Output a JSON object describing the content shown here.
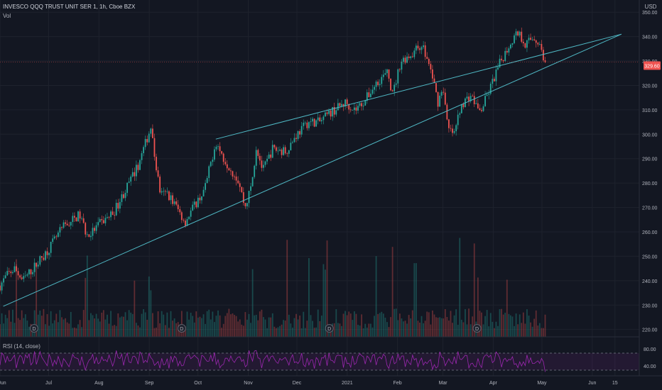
{
  "header": {
    "title": "INVESCO QQQ TRUST UNIT SER 1, 1h, Cboe BZX",
    "volume_label": "Vol",
    "currency": "USD"
  },
  "rsi": {
    "label": "RSI (14, close)",
    "ticks": [
      "80.00",
      "40.00"
    ],
    "upper": 70,
    "lower": 30
  },
  "last_price": {
    "label": "329.60",
    "value": 329.6
  },
  "dividend_marker": "D",
  "colors": {
    "background": "#131722",
    "up": "#26a69a",
    "down": "#ef5350",
    "trendline": "#4fb8c4",
    "rsi": "#9c27b0",
    "price_line": "#ef5350"
  },
  "chart_data": {
    "type": "candlestick",
    "title": "INVESCO QQQ TRUST UNIT SER 1, 1h, Cboe BZX",
    "y_unit": "USD",
    "ylim": [
      217,
      355
    ],
    "y_ticks": [
      "350.00",
      "340.00",
      "330.00",
      "320.00",
      "310.00",
      "300.00",
      "290.00",
      "280.00",
      "270.00",
      "260.00",
      "250.00",
      "240.00",
      "230.00",
      "220.00"
    ],
    "x_ticks": [
      "Jun",
      "Jul",
      "Aug",
      "Sep",
      "Oct",
      "Nov",
      "Dec",
      "2021",
      "Feb",
      "Mar",
      "Apr",
      "May",
      "Jun",
      "15"
    ],
    "x_tick_dates": [
      "2020-06-01",
      "2020-07-01",
      "2020-08-01",
      "2020-09-01",
      "2020-10-01",
      "2020-11-01",
      "2020-12-01",
      "2021-01-01",
      "2021-02-01",
      "2021-03-01",
      "2021-04-01",
      "2021-05-01",
      "2021-06-01",
      "2021-06-15"
    ],
    "x_range": [
      "2020-06-01",
      "2021-06-30"
    ],
    "price_path": [
      {
        "date": "2020-06-01",
        "price": 238
      },
      {
        "date": "2020-06-05",
        "price": 242
      },
      {
        "date": "2020-06-10",
        "price": 245
      },
      {
        "date": "2020-06-15",
        "price": 240
      },
      {
        "date": "2020-06-20",
        "price": 244
      },
      {
        "date": "2020-06-25",
        "price": 248
      },
      {
        "date": "2020-07-01",
        "price": 253
      },
      {
        "date": "2020-07-10",
        "price": 262
      },
      {
        "date": "2020-07-20",
        "price": 267
      },
      {
        "date": "2020-07-25",
        "price": 258
      },
      {
        "date": "2020-08-01",
        "price": 263
      },
      {
        "date": "2020-08-10",
        "price": 268
      },
      {
        "date": "2020-08-18",
        "price": 278
      },
      {
        "date": "2020-08-25",
        "price": 287
      },
      {
        "date": "2020-09-02",
        "price": 303
      },
      {
        "date": "2020-09-04",
        "price": 292
      },
      {
        "date": "2020-09-08",
        "price": 275
      },
      {
        "date": "2020-09-12",
        "price": 276
      },
      {
        "date": "2020-09-18",
        "price": 270
      },
      {
        "date": "2020-09-23",
        "price": 264
      },
      {
        "date": "2020-09-28",
        "price": 270
      },
      {
        "date": "2020-10-05",
        "price": 277
      },
      {
        "date": "2020-10-12",
        "price": 297
      },
      {
        "date": "2020-10-16",
        "price": 291
      },
      {
        "date": "2020-10-20",
        "price": 287
      },
      {
        "date": "2020-10-26",
        "price": 281
      },
      {
        "date": "2020-10-30",
        "price": 270
      },
      {
        "date": "2020-11-03",
        "price": 279
      },
      {
        "date": "2020-11-06",
        "price": 295
      },
      {
        "date": "2020-11-10",
        "price": 285
      },
      {
        "date": "2020-11-16",
        "price": 294
      },
      {
        "date": "2020-11-24",
        "price": 293
      },
      {
        "date": "2020-12-01",
        "price": 300
      },
      {
        "date": "2020-12-08",
        "price": 305
      },
      {
        "date": "2020-12-15",
        "price": 305
      },
      {
        "date": "2020-12-22",
        "price": 309
      },
      {
        "date": "2020-12-31",
        "price": 313
      },
      {
        "date": "2021-01-06",
        "price": 310
      },
      {
        "date": "2021-01-12",
        "price": 314
      },
      {
        "date": "2021-01-20",
        "price": 322
      },
      {
        "date": "2021-01-26",
        "price": 325
      },
      {
        "date": "2021-01-29",
        "price": 316
      },
      {
        "date": "2021-02-03",
        "price": 330
      },
      {
        "date": "2021-02-10",
        "price": 333
      },
      {
        "date": "2021-02-16",
        "price": 337
      },
      {
        "date": "2021-02-22",
        "price": 325
      },
      {
        "date": "2021-02-26",
        "price": 313
      },
      {
        "date": "2021-03-01",
        "price": 320
      },
      {
        "date": "2021-03-04",
        "price": 302
      },
      {
        "date": "2021-03-08",
        "price": 300
      },
      {
        "date": "2021-03-12",
        "price": 312
      },
      {
        "date": "2021-03-18",
        "price": 316
      },
      {
        "date": "2021-03-24",
        "price": 309
      },
      {
        "date": "2021-03-29",
        "price": 317
      },
      {
        "date": "2021-04-05",
        "price": 329
      },
      {
        "date": "2021-04-12",
        "price": 338
      },
      {
        "date": "2021-04-16",
        "price": 342
      },
      {
        "date": "2021-04-21",
        "price": 337
      },
      {
        "date": "2021-04-26",
        "price": 340
      },
      {
        "date": "2021-04-30",
        "price": 336
      },
      {
        "date": "2021-05-03",
        "price": 329.6
      }
    ],
    "trendlines": [
      {
        "start": {
          "date": "2020-06-03",
          "price": 229.5
        },
        "end": {
          "date": "2021-06-19",
          "price": 341
        }
      },
      {
        "start": {
          "date": "2020-10-12",
          "price": 298
        },
        "end": {
          "date": "2021-06-19",
          "price": 341
        }
      }
    ],
    "dividend_dates": [
      "2020-06-22",
      "2020-09-21",
      "2020-12-21",
      "2021-03-22"
    ],
    "volume": {
      "ylim": [
        0,
        1
      ]
    },
    "rsi": {
      "period": 14,
      "ylim": [
        20,
        100
      ]
    }
  }
}
